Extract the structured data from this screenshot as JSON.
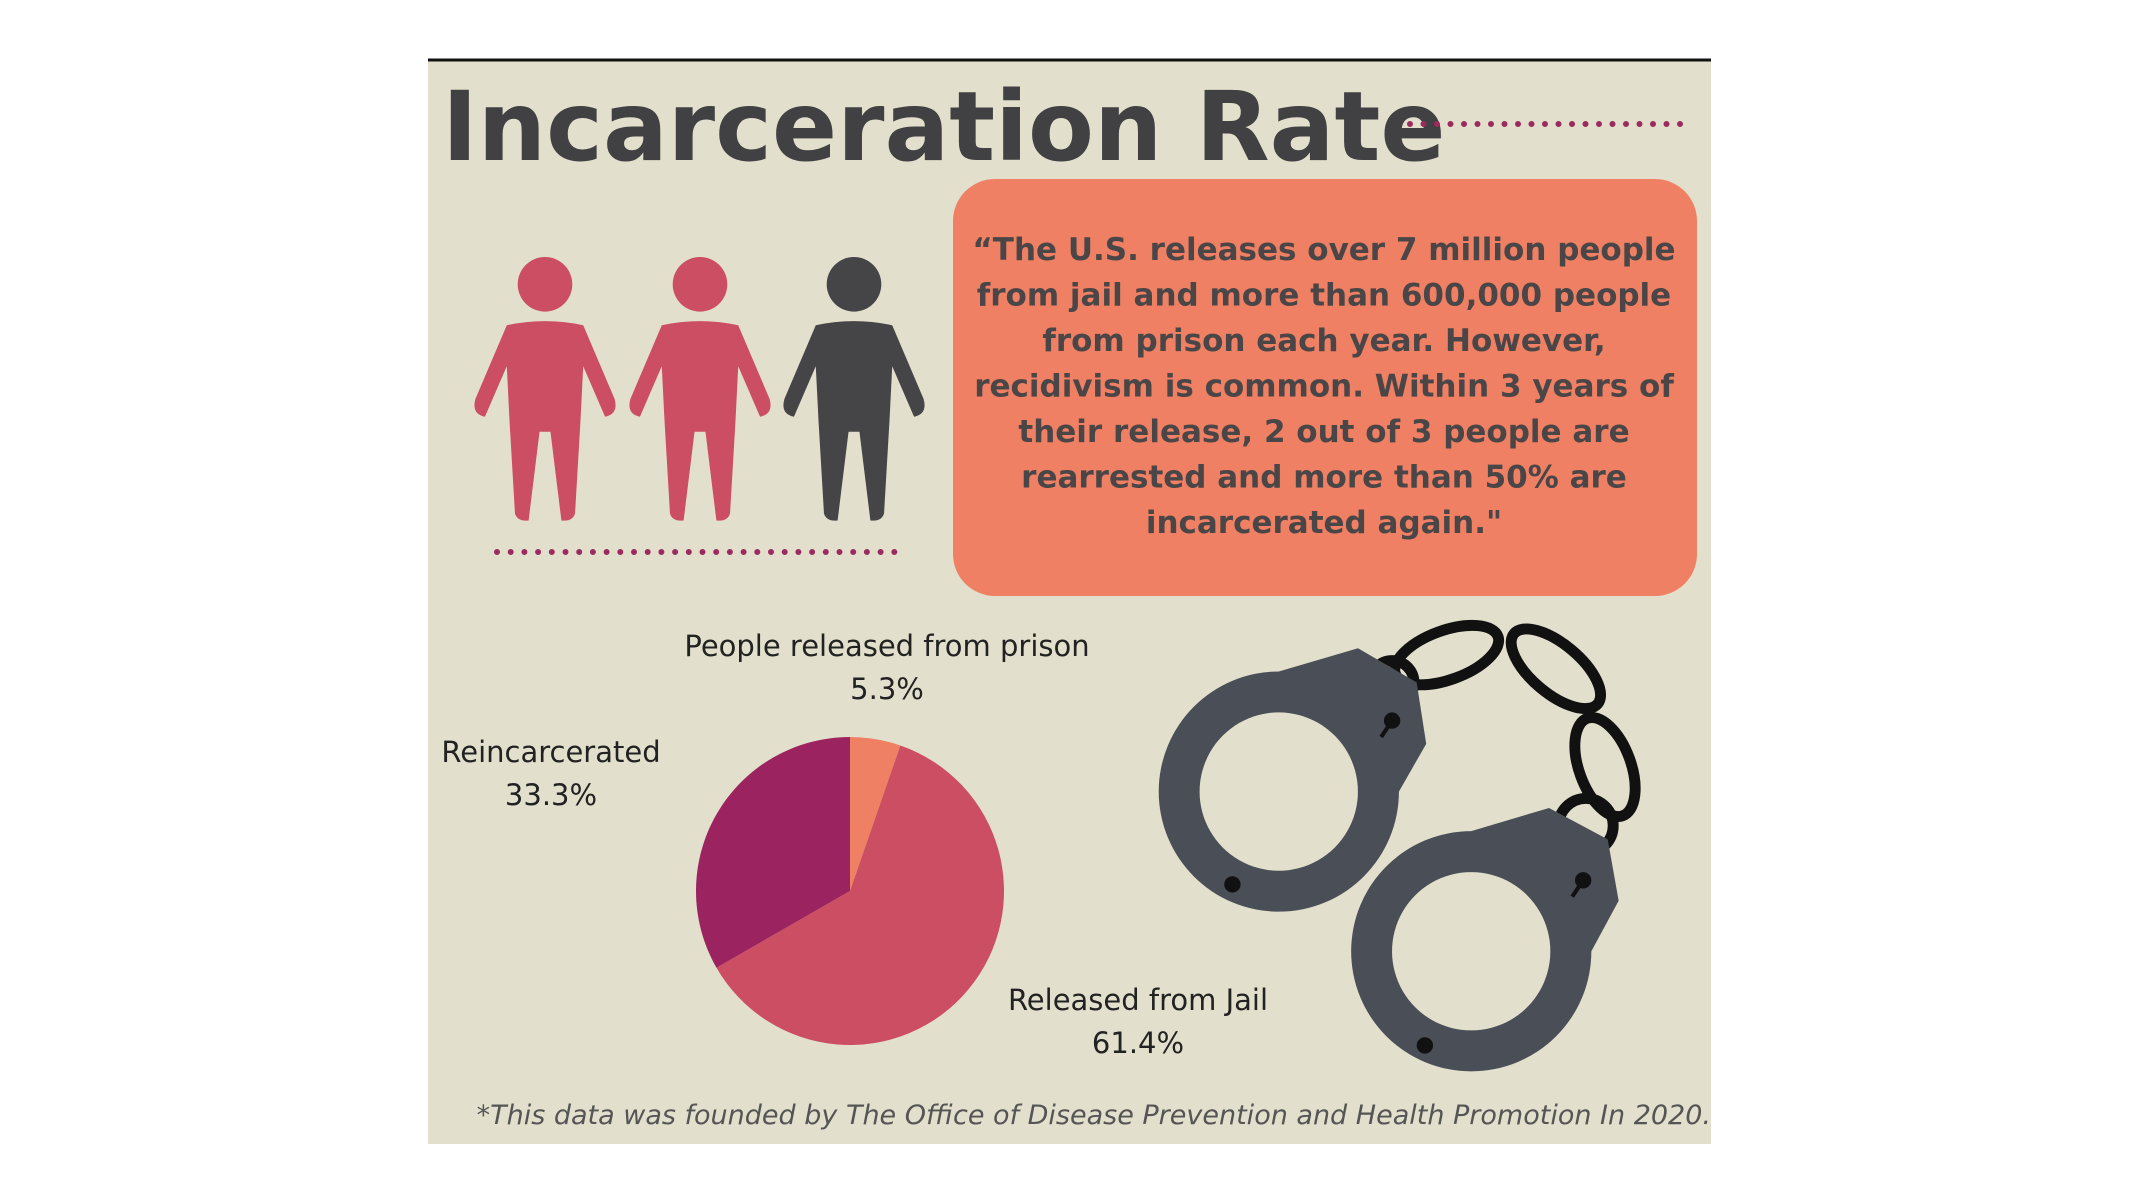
{
  "title": "Incarceration Rate",
  "quote": [
    "“The U.S. releases over 7 million people",
    "from jail and more than 600,000 people",
    "from prison each year. However,",
    "recidivism is common. Within 3 years of",
    "their release, 2 out of 3 people are",
    "rearrested and more than 50% are",
    "incarcerated again.\""
  ],
  "footnote": "*This data was founded by The Office of Disease Prevention and Health Promotion In 2020.",
  "chart_data": {
    "type": "pie",
    "categories": [
      "People released from prison",
      "Released from Jail",
      "Reincarcerated"
    ],
    "values": [
      5.3,
      61.4,
      33.3
    ],
    "value_labels": [
      "5.3%",
      "61.4%",
      "33.3%"
    ],
    "colors": [
      "#ef8064",
      "#cc4e63",
      "#9b2360"
    ]
  }
}
